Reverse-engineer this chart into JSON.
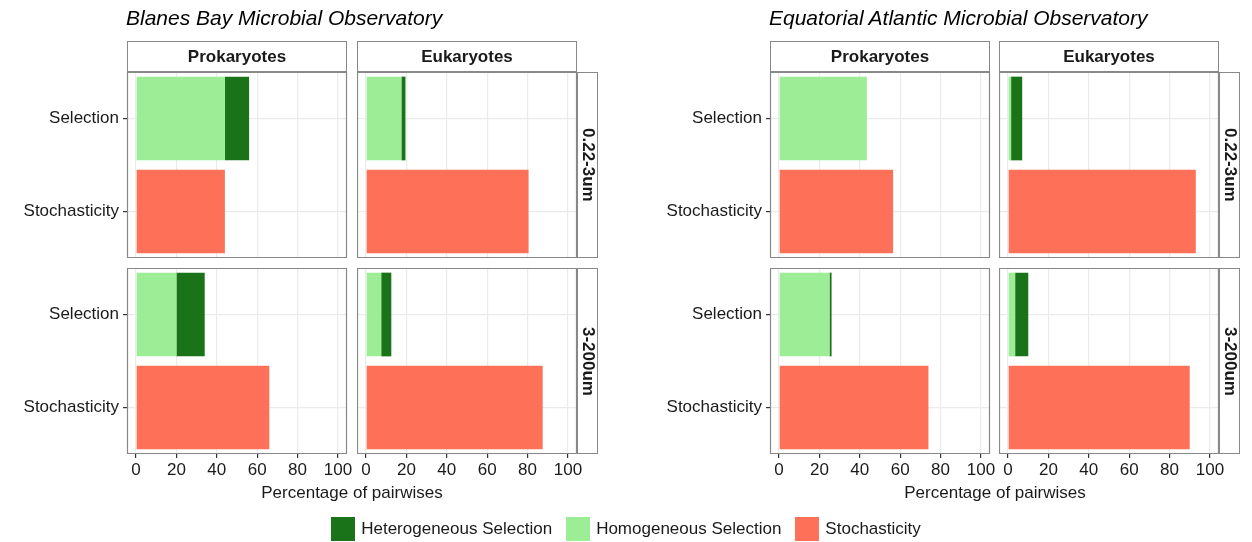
{
  "chart_data": [
    {
      "type": "bar",
      "orientation": "horizontal",
      "stacked": true,
      "title": "Prokaryotes",
      "annotations": [
        "Blanes Bay Microbial Observatory"
      ],
      "categories": [
        "Selection",
        "Stochasticity"
      ],
      "legend": "bottom",
      "grid": true,
      "tick_labels": "y",
      "xlim": [
        -4.5,
        104.5
      ],
      "xticks": [
        0,
        20,
        40,
        60,
        80,
        100
      ],
      "series": [
        {
          "name": "Homogeneous Selection",
          "color": "#9ded96",
          "values": [
            44,
            null
          ]
        },
        {
          "name": "Heterogeneous Selection",
          "color": "#1a7219",
          "values": [
            12,
            null
          ]
        },
        {
          "name": "Stochasticity",
          "color": "#fe7058",
          "values": [
            null,
            44
          ]
        }
      ]
    },
    {
      "type": "bar",
      "orientation": "horizontal",
      "stacked": true,
      "title": "Eukaryotes",
      "y2label": "0.22-3um",
      "categories": [
        null,
        null
      ],
      "grid": true,
      "tick_labels": false,
      "xlim": [
        -4.5,
        104.5
      ],
      "xticks": [
        0,
        20,
        40,
        60,
        80,
        100
      ],
      "series": [
        {
          "color": "#9ded96",
          "values": [
            17.5,
            null
          ]
        },
        {
          "color": "#1a7219",
          "values": [
            2,
            null
          ]
        },
        {
          "color": "#fe7058",
          "values": [
            null,
            80.5
          ]
        }
      ]
    },
    {
      "type": "bar",
      "orientation": "horizontal",
      "stacked": true,
      "title": "Prokaryotes",
      "annotations": [
        "Equatorial Atlantic Microbial Observatory"
      ],
      "categories": [
        "Selection",
        "Stochasticity"
      ],
      "grid": true,
      "tick_labels": "y",
      "xlim": [
        -4.5,
        104.5
      ],
      "xticks": [
        0,
        20,
        40,
        60,
        80,
        100
      ],
      "series": [
        {
          "color": "#9ded96",
          "values": [
            43.5,
            null
          ]
        },
        {
          "color": "#1a7219",
          "values": [
            0,
            null
          ]
        },
        {
          "color": "#fe7058",
          "values": [
            null,
            56.5
          ]
        }
      ]
    },
    {
      "type": "bar",
      "orientation": "horizontal",
      "stacked": true,
      "title": "Eukaryotes",
      "y2label": "0.22-3um",
      "categories": [
        null,
        null
      ],
      "grid": true,
      "tick_labels": false,
      "xlim": [
        -4.5,
        104.5
      ],
      "xticks": [
        0,
        20,
        40,
        60,
        80,
        100
      ],
      "series": [
        {
          "color": "#9ded96",
          "values": [
            1.5,
            null
          ]
        },
        {
          "color": "#1a7219",
          "values": [
            5.5,
            null
          ]
        },
        {
          "color": "#fe7058",
          "values": [
            null,
            93
          ]
        }
      ]
    },
    {
      "type": "bar",
      "orientation": "horizontal",
      "stacked": true,
      "xlabel": "Percentage of pairwises",
      "categories": [
        "Selection",
        "Stochasticity"
      ],
      "grid": true,
      "xlim": [
        -4.5,
        104.5
      ],
      "xticks": [
        0,
        20,
        40,
        60,
        80,
        100
      ],
      "series": [
        {
          "color": "#9ded96",
          "values": [
            20,
            null
          ]
        },
        {
          "color": "#1a7219",
          "values": [
            14,
            null
          ]
        },
        {
          "color": "#fe7058",
          "values": [
            null,
            66
          ]
        }
      ]
    },
    {
      "type": "bar",
      "orientation": "horizontal",
      "stacked": true,
      "y2label": "3-200um",
      "categories": [
        null,
        null
      ],
      "grid": true,
      "tick_labels": "x",
      "xlim": [
        -4.5,
        104.5
      ],
      "xticks": [
        0,
        20,
        40,
        60,
        80,
        100
      ],
      "series": [
        {
          "color": "#9ded96",
          "values": [
            7.5,
            null
          ]
        },
        {
          "color": "#1a7219",
          "values": [
            5,
            null
          ]
        },
        {
          "color": "#fe7058",
          "values": [
            null,
            87.5
          ]
        }
      ]
    },
    {
      "type": "bar",
      "orientation": "horizontal",
      "stacked": true,
      "xlabel": "Percentage of pairwises",
      "categories": [
        "Selection",
        "Stochasticity"
      ],
      "grid": true,
      "xlim": [
        -4.5,
        104.5
      ],
      "xticks": [
        0,
        20,
        40,
        60,
        80,
        100
      ],
      "series": [
        {
          "color": "#9ded96",
          "values": [
            25,
            null
          ]
        },
        {
          "color": "#1a7219",
          "values": [
            1,
            null
          ]
        },
        {
          "color": "#fe7058",
          "values": [
            null,
            74
          ]
        }
      ]
    },
    {
      "type": "bar",
      "orientation": "horizontal",
      "stacked": true,
      "y2label": "3-200um",
      "categories": [
        null,
        null
      ],
      "grid": true,
      "tick_labels": "x",
      "xlim": [
        -4.5,
        104.5
      ],
      "xticks": [
        0,
        20,
        40,
        60,
        80,
        100
      ],
      "series": [
        {
          "color": "#9ded96",
          "values": [
            3.5,
            null
          ]
        },
        {
          "color": "#1a7219",
          "values": [
            6.5,
            null
          ]
        },
        {
          "color": "#fe7058",
          "values": [
            null,
            90
          ]
        }
      ]
    }
  ]
}
